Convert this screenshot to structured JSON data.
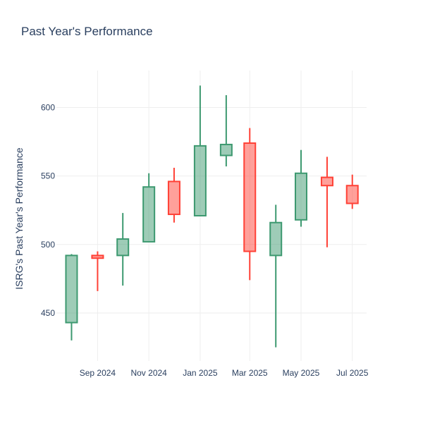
{
  "chart_data": {
    "type": "candlestick",
    "title": "Past Year's Performance",
    "xlabel": "",
    "ylabel": "ISRG's Past Year's Performance",
    "ylim": [
      415,
      627
    ],
    "yticks": [
      450,
      500,
      550,
      600
    ],
    "xlim": [
      "2024-07-14",
      "2025-07-18"
    ],
    "xticks": [
      {
        "date": "2024-09-01",
        "label": "Sep 2024"
      },
      {
        "date": "2024-11-01",
        "label": "Nov 2024"
      },
      {
        "date": "2025-01-01",
        "label": "Jan 2025"
      },
      {
        "date": "2025-03-01",
        "label": "Mar 2025"
      },
      {
        "date": "2025-05-01",
        "label": "May 2025"
      },
      {
        "date": "2025-07-01",
        "label": "Jul 2025"
      }
    ],
    "candles": [
      {
        "date": "2024-08-01",
        "open": 443,
        "high": 493,
        "low": 430,
        "close": 492
      },
      {
        "date": "2024-09-01",
        "open": 492,
        "high": 495,
        "low": 466,
        "close": 490
      },
      {
        "date": "2024-10-01",
        "open": 492,
        "high": 523,
        "low": 470,
        "close": 504
      },
      {
        "date": "2024-11-01",
        "open": 502,
        "high": 552,
        "low": 502,
        "close": 542
      },
      {
        "date": "2024-12-01",
        "open": 546,
        "high": 556,
        "low": 516,
        "close": 522
      },
      {
        "date": "2025-01-01",
        "open": 521,
        "high": 616,
        "low": 521,
        "close": 572
      },
      {
        "date": "2025-02-01",
        "open": 565,
        "high": 609,
        "low": 557,
        "close": 573
      },
      {
        "date": "2025-03-01",
        "open": 574,
        "high": 585,
        "low": 474,
        "close": 495
      },
      {
        "date": "2025-04-01",
        "open": 492,
        "high": 529,
        "low": 425,
        "close": 516
      },
      {
        "date": "2025-05-01",
        "open": 518,
        "high": 569,
        "low": 513,
        "close": 552
      },
      {
        "date": "2025-06-01",
        "open": 549,
        "high": 564,
        "low": 498,
        "close": 543
      },
      {
        "date": "2025-07-01",
        "open": 543,
        "high": 551,
        "low": 526,
        "close": 530
      }
    ],
    "colors": {
      "increasing_line": "#3d9970",
      "increasing_fill": "rgba(61,153,112,0.5)",
      "decreasing_line": "#ff4136",
      "decreasing_fill": "rgba(255,65,54,0.5)",
      "grid": "#eeeeee",
      "text": "#2a3f5f"
    },
    "grid": true,
    "legend": false
  }
}
